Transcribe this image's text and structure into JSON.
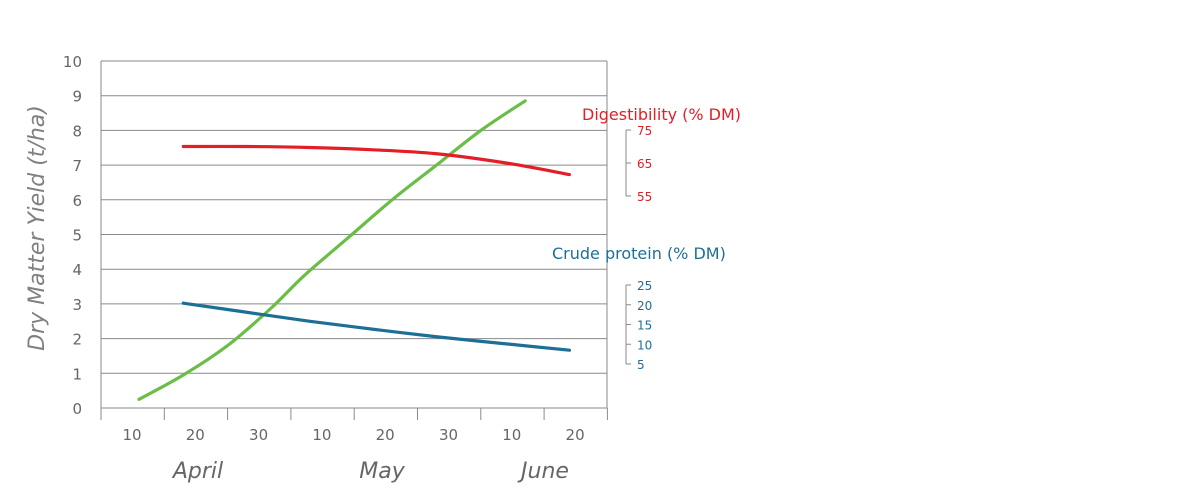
{
  "chart_data": {
    "type": "line",
    "ylabel": "Dry Matter Yield (t/ha)",
    "ylim": [
      0,
      10
    ],
    "yticks": [
      "0",
      "1",
      "2",
      "3",
      "4",
      "5",
      "6",
      "7",
      "8",
      "9",
      "10"
    ],
    "grid": true,
    "x_day_ticks": [
      "10",
      "20",
      "30",
      "10",
      "20",
      "30",
      "10",
      "20"
    ],
    "months": [
      "April",
      "May",
      "June"
    ],
    "series": [
      {
        "name": "Dry Matter Yield",
        "color": "#6abd45",
        "axis": "left",
        "points": [
          [
            "April 13",
            0.25
          ],
          [
            "April 20",
            0.95
          ],
          [
            "April 27",
            1.8
          ],
          [
            "May 4",
            2.9
          ],
          [
            "May 9",
            3.8
          ],
          [
            "May 16",
            4.9
          ],
          [
            "May 23",
            6.0
          ],
          [
            "May 30",
            7.0
          ],
          [
            "June 6",
            8.0
          ],
          [
            "June 13",
            8.85
          ]
        ]
      },
      {
        "name": "Digestibility (% DM)",
        "color": "#e31e26",
        "axis": "digestibility",
        "points": [
          [
            "April 20",
            70.0
          ],
          [
            "April 30",
            70.0
          ],
          [
            "May 10",
            69.7
          ],
          [
            "May 20",
            69.0
          ],
          [
            "May 30",
            67.8
          ],
          [
            "June 10",
            65.0
          ],
          [
            "June 20",
            61.5
          ]
        ]
      },
      {
        "name": "Crude protein (% DM)",
        "color": "#1c6f96",
        "axis": "crude_protein",
        "points": [
          [
            "April 20",
            20.4
          ],
          [
            "April 30",
            18.1
          ],
          [
            "May 10",
            15.8
          ],
          [
            "May 20",
            13.8
          ],
          [
            "May 30",
            11.9
          ],
          [
            "June 10",
            10.1
          ],
          [
            "June 20",
            8.5
          ]
        ]
      }
    ],
    "secondary_axes": {
      "digestibility": {
        "title": "Digestibility (% DM)",
        "ticks": [
          "75",
          "65",
          "55"
        ],
        "color": "#e31e26"
      },
      "crude_protein": {
        "title": "Crude protein (% DM)",
        "ticks": [
          "25",
          "20",
          "15",
          "10",
          "5"
        ],
        "color": "#1c6f96"
      }
    }
  }
}
